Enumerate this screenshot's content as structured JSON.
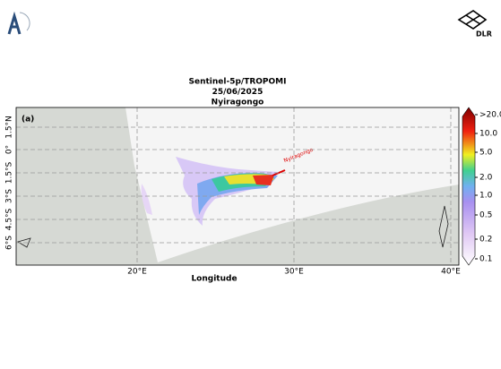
{
  "header": {
    "logo_text": "DLR"
  },
  "map": {
    "title_lines": [
      "Sentinel-5p/TROPOMI",
      "25/06/2025",
      "Nyiragongo"
    ],
    "panel_label": "(a)",
    "lat_labels": [
      "1.5°N",
      "0°",
      "1.5°S",
      "3°S",
      "4.5°S",
      "6°S"
    ],
    "lon_labels": [
      "20°E",
      "30°E",
      "40°E"
    ],
    "x_label": "Longitude",
    "annotation": "Nyiragongo",
    "colorbar_labels": [
      ">20.0",
      "10.0",
      "5.0",
      "2.0",
      "1.0",
      "0.5",
      "0.2",
      "0.1"
    ]
  }
}
